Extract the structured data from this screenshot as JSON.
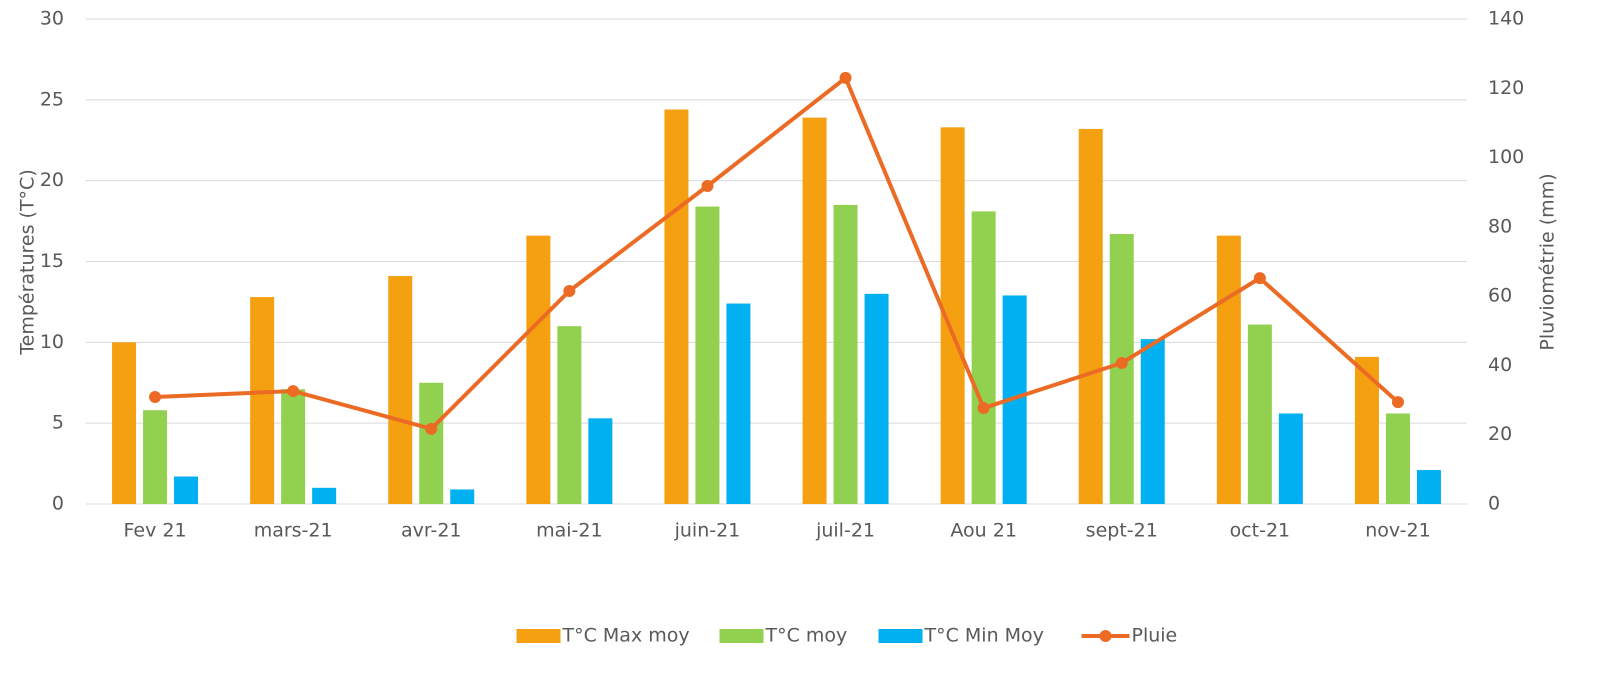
{
  "chart_data": {
    "type": "bar",
    "categories": [
      "Fev 21",
      "mars-21",
      "avr-21",
      "mai-21",
      "juin-21",
      "juil-21",
      "Aou 21",
      "sept-21",
      "oct-21",
      "nov-21"
    ],
    "series": [
      {
        "name": "T°C Max moy",
        "color": "#F5A011",
        "values": [
          10,
          12.8,
          14.1,
          16.6,
          24.4,
          23.9,
          23.3,
          23.2,
          16.6,
          9.1
        ]
      },
      {
        "name": "T°C moy",
        "color": "#92D050",
        "values": [
          5.8,
          7.1,
          7.5,
          11,
          18.4,
          18.5,
          18.1,
          16.7,
          11.1,
          5.6
        ]
      },
      {
        "name": "T°C Min Moy",
        "color": "#00B0F0",
        "values": [
          1.7,
          1.0,
          0.9,
          5.3,
          12.4,
          13.0,
          12.9,
          10.2,
          5.6,
          2.1
        ]
      },
      {
        "name": "Pluie",
        "type": "line",
        "axis": "y2",
        "color": "#EC6B24",
        "values": [
          30.9,
          32.6,
          21.7,
          61.5,
          91.8,
          123,
          27.7,
          40.7,
          65.2,
          29.4
        ]
      }
    ],
    "ylabel": "Températures (T°C)",
    "y2label": "Pluviométrie (mm)",
    "ylim": [
      0,
      30
    ],
    "yticks": [
      0,
      5,
      10,
      15,
      20,
      25,
      30
    ],
    "y2lim": [
      0,
      140
    ],
    "y2ticks": [
      0,
      20,
      40,
      60,
      80,
      100,
      120,
      140
    ],
    "grid": true,
    "legend": "bottom"
  }
}
